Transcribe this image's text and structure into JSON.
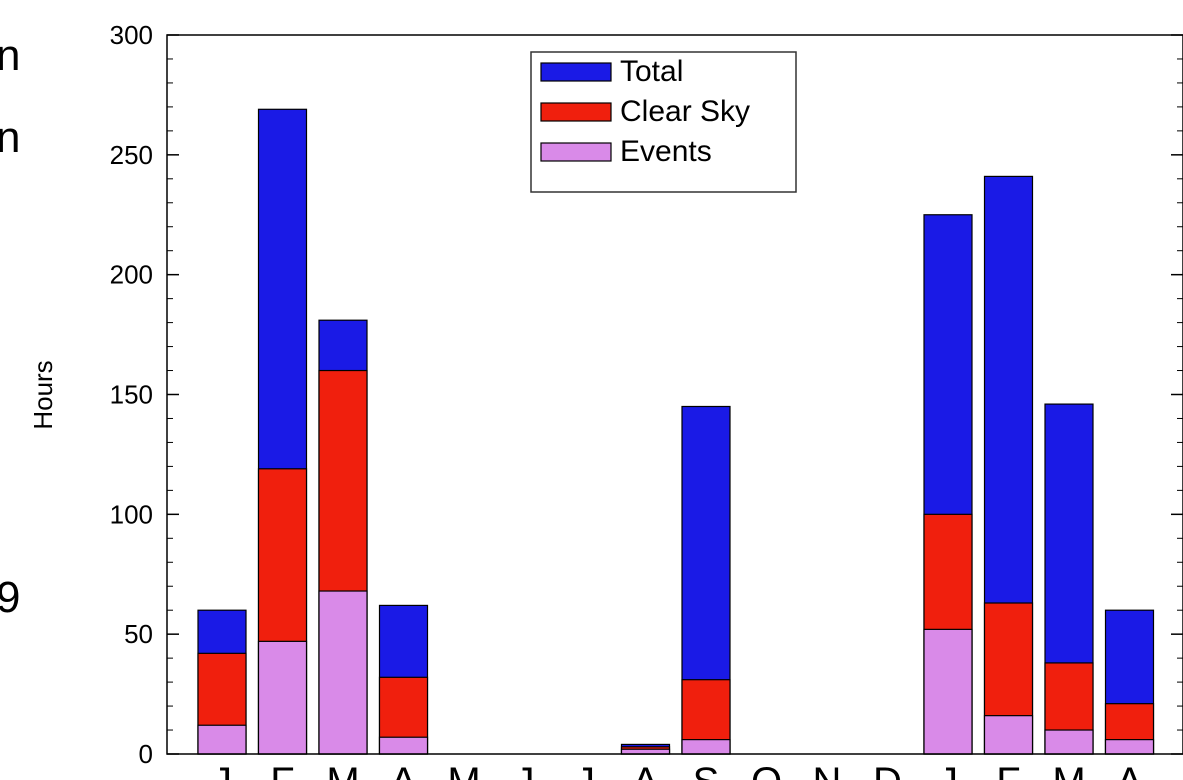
{
  "left_fragments": [
    "n",
    "n",
    "9"
  ],
  "chart_data": {
    "type": "bar",
    "stacked": false,
    "overlaid": true,
    "ylabel": "Hours",
    "xlabel": "",
    "ylim": [
      0,
      300
    ],
    "yticks": [
      0,
      50,
      100,
      150,
      200,
      250,
      300
    ],
    "categories": [
      "J",
      "F",
      "M",
      "A",
      "M",
      "J",
      "J",
      "A",
      "S",
      "O",
      "N",
      "D",
      "J",
      "F",
      "M",
      "A"
    ],
    "series": [
      {
        "name": "Total",
        "color": "#1a1ae6",
        "values": [
          60,
          269,
          181,
          62,
          0,
          0,
          0,
          4,
          145,
          0,
          0,
          0,
          225,
          241,
          146,
          60
        ]
      },
      {
        "name": "Clear Sky",
        "color": "#f01f0d",
        "values": [
          42,
          119,
          160,
          32,
          0,
          0,
          0,
          3,
          31,
          0,
          0,
          0,
          100,
          63,
          38,
          21
        ]
      },
      {
        "name": "Events",
        "color": "#d98ae8",
        "values": [
          12,
          47,
          68,
          7,
          0,
          0,
          0,
          2,
          6,
          0,
          0,
          0,
          52,
          16,
          10,
          6
        ]
      }
    ],
    "legend": {
      "position": "top-center",
      "entries": [
        "Total",
        "Clear Sky",
        "Events"
      ]
    },
    "grid": false
  }
}
